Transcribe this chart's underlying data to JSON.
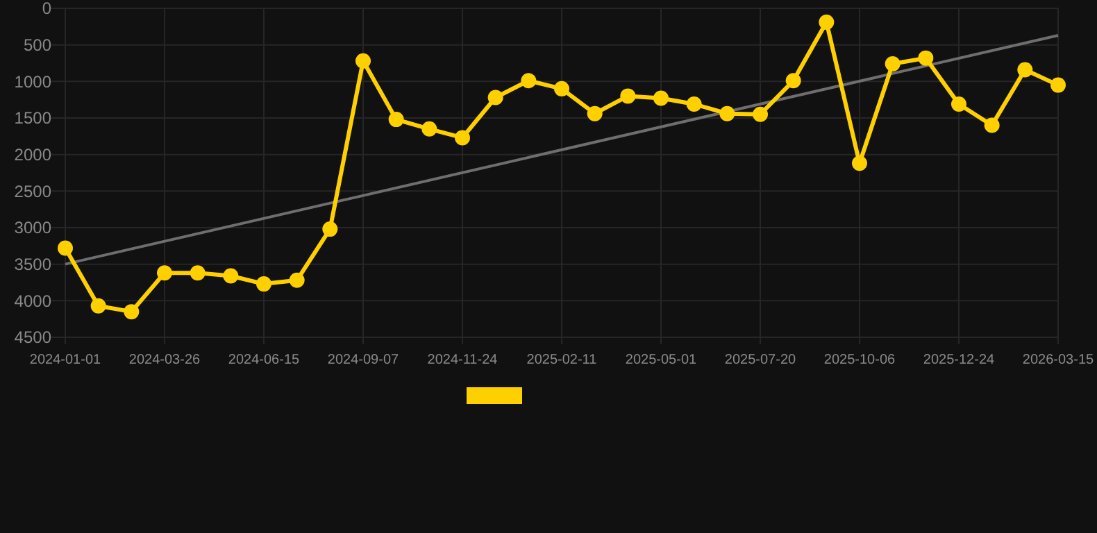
{
  "chart_data": {
    "type": "line",
    "categories": [
      "2024-01-01",
      null,
      null,
      "2024-03-26",
      null,
      null,
      "2024-06-15",
      null,
      null,
      "2024-09-07",
      null,
      null,
      "2024-11-24",
      null,
      null,
      "2025-02-11",
      null,
      null,
      "2025-05-01",
      null,
      null,
      "2025-07-20",
      null,
      null,
      "2025-10-06",
      null,
      null,
      "2025-12-24",
      null,
      null,
      "2026-03-15"
    ],
    "series": [
      {
        "color": "#ffd000",
        "marker": "circle",
        "values": [
          3280,
          4070,
          4150,
          3620,
          3620,
          3660,
          3770,
          3720,
          3020,
          720,
          1520,
          1650,
          1770,
          1220,
          990,
          1100,
          1440,
          1200,
          1230,
          1310,
          1440,
          1450,
          990,
          190,
          2120,
          760,
          680,
          1310,
          1600,
          840,
          1050
        ]
      },
      {
        "color": "#6e6e6e",
        "marker": "none",
        "values": [
          3500,
          null,
          null,
          null,
          null,
          null,
          null,
          null,
          null,
          null,
          null,
          null,
          null,
          null,
          null,
          null,
          null,
          null,
          null,
          null,
          null,
          null,
          null,
          null,
          null,
          null,
          null,
          null,
          null,
          null,
          370
        ]
      }
    ],
    "ylim": [
      4500,
      0
    ],
    "yticks": [
      0,
      500,
      1000,
      1500,
      2000,
      2500,
      3000,
      3500,
      4000,
      4500
    ],
    "grid": true
  }
}
